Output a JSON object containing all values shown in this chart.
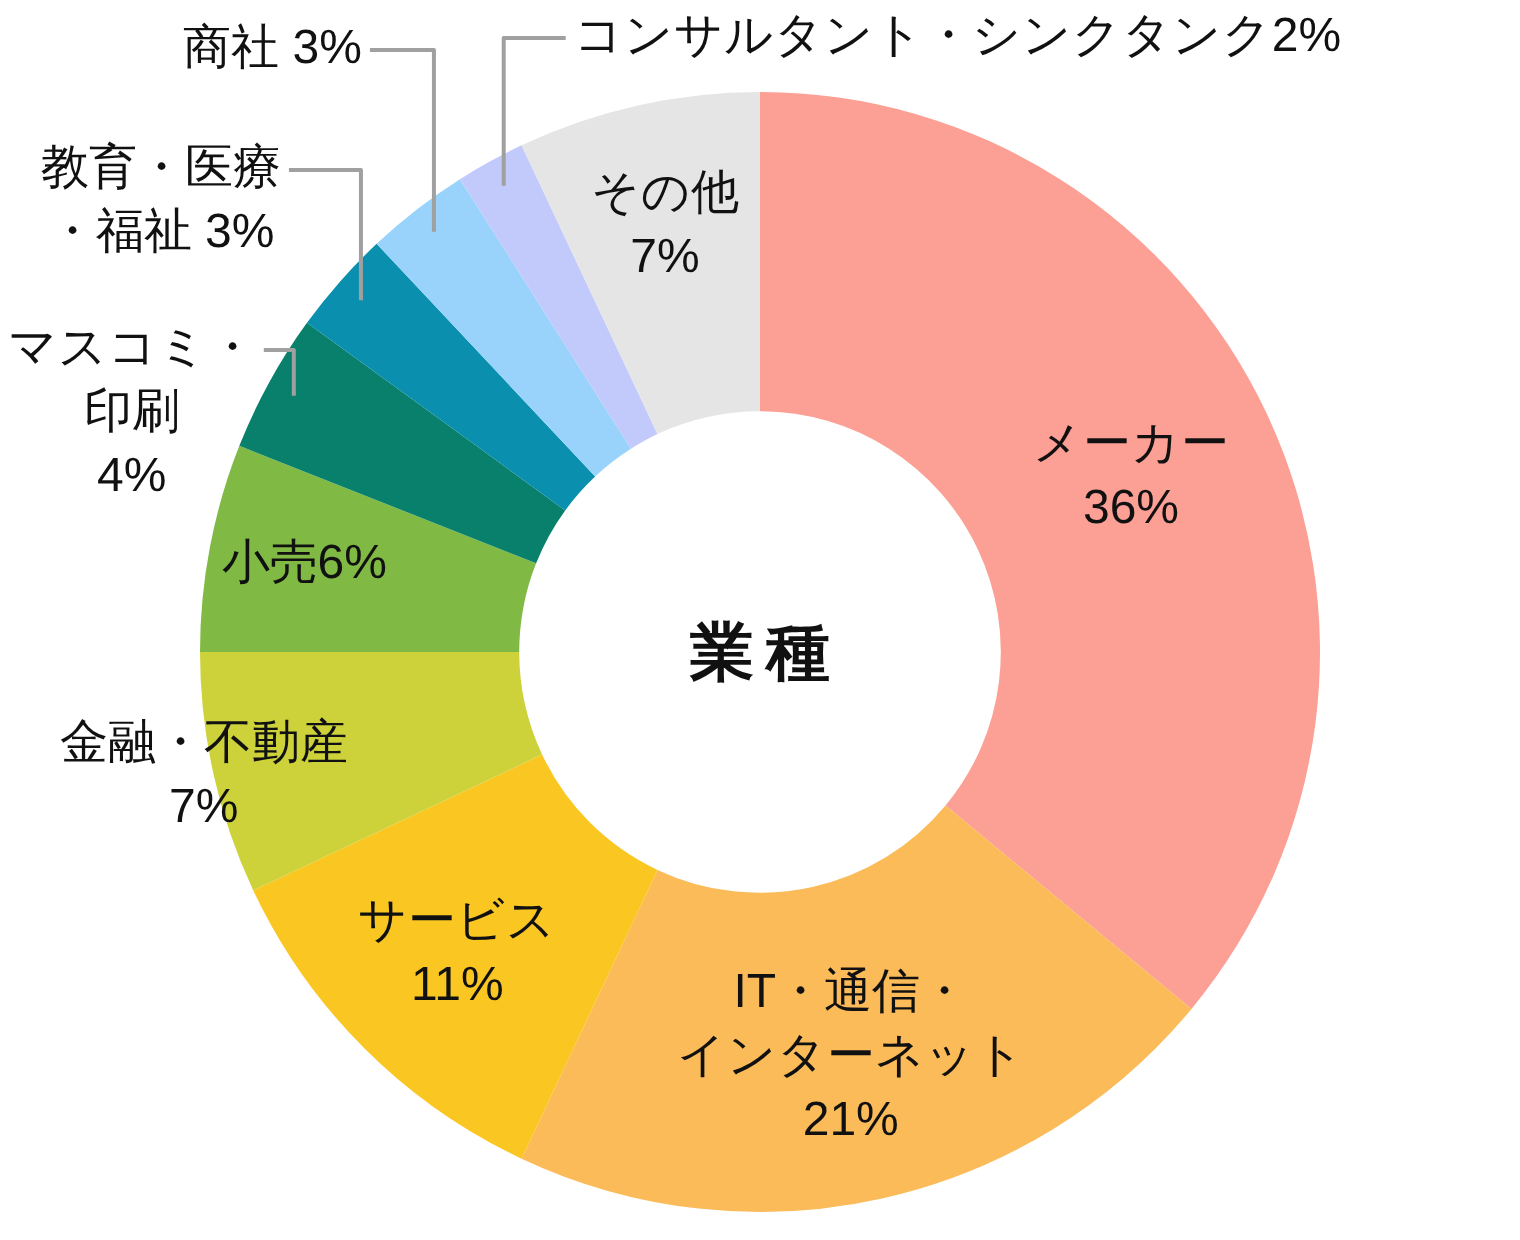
{
  "chart_data": {
    "type": "donut",
    "title": "業種",
    "categories": [
      "メーカー",
      "IT・通信・インターネット",
      "サービス",
      "金融・不動産",
      "小売",
      "マスコミ・印刷",
      "教育・医療・福祉",
      "商社",
      "コンサルタント・シンクタンク",
      "その他"
    ],
    "values": [
      36,
      21,
      11,
      7,
      6,
      4,
      3,
      3,
      2,
      7
    ],
    "colors": [
      "#fca095",
      "#fbbb58",
      "#fac722",
      "#cdd23a",
      "#80ba45",
      "#08806b",
      "#0a90ae",
      "#99d3fb",
      "#c2cafb",
      "#e5e5e5"
    ],
    "value_labels": [
      "36%",
      "21%",
      "11%",
      "7%",
      "6%",
      "4%",
      "3%",
      "3%",
      "2%",
      "7%"
    ]
  }
}
